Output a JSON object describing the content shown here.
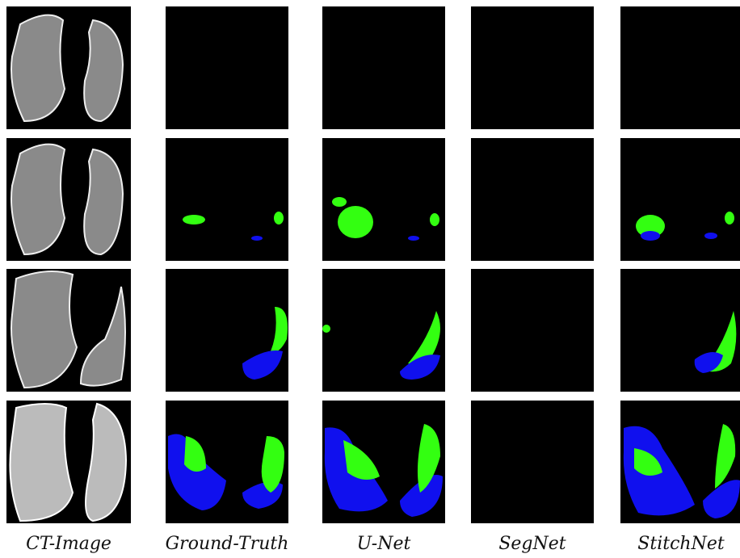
{
  "figure": {
    "columns": [
      "CT-Image",
      "Ground-Truth",
      "U-Net",
      "SegNet",
      "StitchNet"
    ]
  }
}
